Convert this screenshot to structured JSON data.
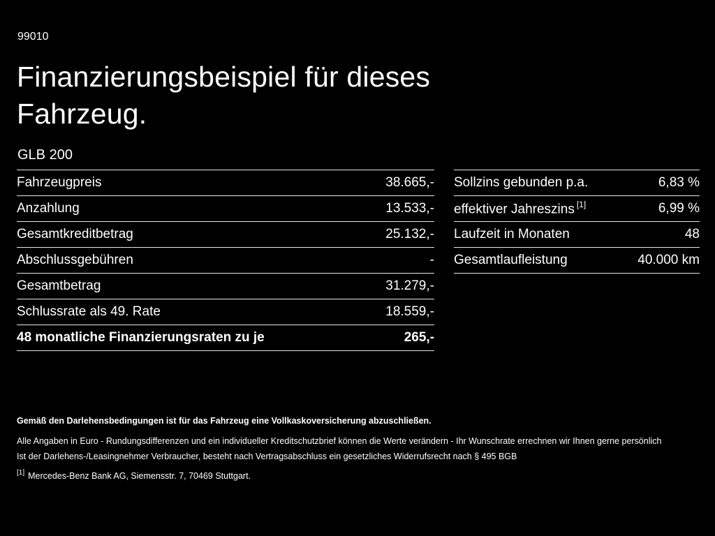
{
  "page": {
    "code": "99010",
    "title_line1": "Finanzierungsbeispiel für dieses",
    "title_line2": "Fahrzeug.",
    "model": "GLB 200"
  },
  "left_table": {
    "rows": [
      {
        "label": "Fahrzeugpreis",
        "value": "38.665,-"
      },
      {
        "label": "Anzahlung",
        "value": "13.533,-"
      },
      {
        "label": "Gesamtkreditbetrag",
        "value": "25.132,-"
      },
      {
        "label": "Abschlussgebühren",
        "value": "-"
      },
      {
        "label": "Gesamtbetrag",
        "value": "31.279,-"
      },
      {
        "label": "Schlussrate als 49. Rate",
        "value": "18.559,-"
      },
      {
        "label": "48 monatliche Finanzierungsraten zu je",
        "value": "265,-"
      }
    ]
  },
  "right_table": {
    "rows": [
      {
        "label": "Sollzins gebunden p.a.",
        "sup": "",
        "value": "6,83 %"
      },
      {
        "label": "effektiver Jahreszins",
        "sup": "[1]",
        "value": "6,99 %"
      },
      {
        "label": "Laufzeit in Monaten",
        "sup": "",
        "value": "48"
      },
      {
        "label": "Gesamtlaufleistung",
        "sup": "",
        "value": "40.000 km"
      }
    ]
  },
  "footer": {
    "line1": "Gemäß den Darlehensbedingungen ist für das Fahrzeug eine Vollkaskoversicherung abzuschließen.",
    "line2": "Alle Angaben in Euro - Rundungsdifferenzen und ein individueller Kreditschutzbrief können die Werte verändern - Ihr Wunschrate errechnen wir Ihnen gerne persönlich",
    "line3": "Ist der Darlehens-/Leasingnehmer Verbraucher, besteht nach Vertragsabschluss ein gesetzliches Widerrufsrecht nach § 495 BGB",
    "footnote_marker": "[1]",
    "footnote_text": "Mercedes-Benz Bank AG, Siemensstr. 7, 70469 Stuttgart."
  },
  "colors": {
    "background": "#000000",
    "text": "#ffffff",
    "divider": "#e8e8e8"
  }
}
